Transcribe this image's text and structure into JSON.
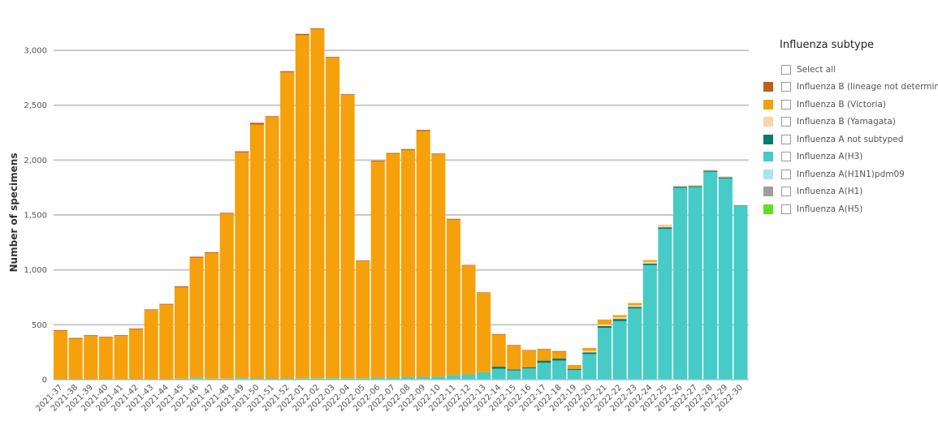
{
  "chart_data": {
    "type": "bar",
    "stacked": true,
    "ylabel": "Number of specimens",
    "ylim": [
      0,
      3200
    ],
    "yticks": [
      0,
      500,
      1000,
      1500,
      2000,
      2500,
      3000
    ],
    "ytick_labels": [
      "0",
      "500",
      "1,000",
      "1,500",
      "2,000",
      "2,500",
      "3,000"
    ],
    "grid": true,
    "legend_position": "right",
    "legend_title": "Influenza subtype",
    "select_all_label": "Select all",
    "categories": [
      "2021-37",
      "2021-38",
      "2021-39",
      "2021-40",
      "2021-41",
      "2021-42",
      "2021-43",
      "2021-44",
      "2021-45",
      "2021-46",
      "2021-47",
      "2021-48",
      "2021-49",
      "2021-50",
      "2021-51",
      "2021-52",
      "2022-01",
      "2022-02",
      "2022-03",
      "2022-04",
      "2022-05",
      "2022-06",
      "2022-07",
      "2022-08",
      "2022-09",
      "2022-10",
      "2022-11",
      "2022-12",
      "2022-13",
      "2022-14",
      "2022-15",
      "2022-16",
      "2022-17",
      "2022-18",
      "2022-19",
      "2022-20",
      "2022-21",
      "2022-22",
      "2022-23",
      "2022-24",
      "2022-25",
      "2022-26",
      "2022-27",
      "2022-28",
      "2022-29",
      "2022-30"
    ],
    "series": [
      {
        "name": "Influenza A(H5)",
        "color": "#66dd22",
        "values": [
          0,
          0,
          0,
          0,
          0,
          0,
          0,
          0,
          0,
          0,
          0,
          0,
          0,
          0,
          0,
          0,
          0,
          0,
          0,
          0,
          0,
          0,
          0,
          0,
          0,
          0,
          0,
          0,
          0,
          0,
          0,
          0,
          0,
          0,
          0,
          0,
          0,
          0,
          0,
          0,
          0,
          0,
          0,
          0,
          0,
          0
        ]
      },
      {
        "name": "Influenza A(H1)",
        "color": "#9e9e9e",
        "values": [
          0,
          0,
          0,
          0,
          0,
          0,
          0,
          0,
          0,
          0,
          0,
          0,
          0,
          0,
          0,
          0,
          0,
          0,
          0,
          0,
          0,
          0,
          0,
          0,
          0,
          0,
          0,
          0,
          0,
          0,
          0,
          0,
          0,
          0,
          0,
          0,
          0,
          0,
          0,
          0,
          0,
          0,
          0,
          0,
          0,
          0
        ]
      },
      {
        "name": "Influenza A(H1N1)pdm09",
        "color": "#a8e4ec",
        "values": [
          2,
          2,
          2,
          2,
          2,
          2,
          2,
          2,
          3,
          5,
          3,
          3,
          5,
          3,
          3,
          3,
          3,
          3,
          3,
          3,
          3,
          3,
          3,
          5,
          5,
          3,
          3,
          3,
          3,
          3,
          3,
          3,
          3,
          3,
          3,
          3,
          3,
          3,
          3,
          3,
          3,
          3,
          3,
          3,
          3,
          3
        ]
      },
      {
        "name": "Influenza A(H3)",
        "color": "#46cbc6",
        "values": [
          3,
          3,
          3,
          3,
          3,
          3,
          3,
          3,
          5,
          12,
          5,
          5,
          12,
          8,
          8,
          8,
          10,
          10,
          10,
          10,
          10,
          15,
          15,
          20,
          20,
          25,
          40,
          45,
          65,
          95,
          80,
          100,
          150,
          170,
          85,
          230,
          470,
          530,
          645,
          1040,
          1370,
          1745,
          1750,
          1890,
          1830,
          1580
        ]
      },
      {
        "name": "Influenza A not subtyped",
        "color": "#0b7a6e",
        "values": [
          0,
          0,
          0,
          0,
          0,
          0,
          0,
          0,
          0,
          0,
          0,
          0,
          0,
          0,
          0,
          0,
          0,
          0,
          0,
          0,
          0,
          0,
          0,
          0,
          0,
          0,
          0,
          0,
          0,
          20,
          10,
          10,
          20,
          20,
          10,
          15,
          15,
          20,
          15,
          15,
          15,
          10,
          10,
          10,
          10,
          5
        ]
      },
      {
        "name": "Influenza B (Yamagata)",
        "color": "#f6d6a6",
        "values": [
          0,
          0,
          0,
          0,
          0,
          0,
          0,
          0,
          0,
          0,
          0,
          0,
          0,
          0,
          0,
          0,
          0,
          0,
          0,
          0,
          0,
          0,
          0,
          0,
          0,
          0,
          0,
          0,
          0,
          0,
          0,
          0,
          0,
          0,
          0,
          15,
          15,
          15,
          15,
          15,
          15,
          10,
          10,
          10,
          10,
          5
        ]
      },
      {
        "name": "Influenza B (Victoria)",
        "color": "#f6a10b",
        "values": [
          438,
          368,
          393,
          378,
          393,
          453,
          628,
          678,
          833,
          1093,
          1145,
          1505,
          2053,
          2313,
          2382,
          2790,
          3125,
          3180,
          2920,
          2580,
          1065,
          1970,
          2040,
          2065,
          2240,
          2025,
          1415,
          992,
          722,
          292,
          217,
          152,
          102,
          62,
          35,
          26,
          45,
          20,
          20,
          15,
          5,
          0,
          0,
          0,
          0,
          0
        ]
      },
      {
        "name": "Influenza B (lineage not determined)",
        "color": "#c15d1c",
        "values": [
          7,
          7,
          7,
          7,
          7,
          7,
          7,
          7,
          9,
          10,
          7,
          7,
          10,
          16,
          7,
          9,
          12,
          7,
          7,
          7,
          7,
          7,
          7,
          10,
          10,
          7,
          7,
          5,
          5,
          5,
          5,
          5,
          5,
          5,
          0,
          0,
          0,
          0,
          0,
          0,
          0,
          0,
          0,
          0,
          0,
          0
        ]
      }
    ],
    "legend_order": [
      "Influenza B (lineage not determined)",
      "Influenza B (Victoria)",
      "Influenza B (Yamagata)",
      "Influenza A not subtyped",
      "Influenza A(H3)",
      "Influenza A(H1N1)pdm09",
      "Influenza A(H1)",
      "Influenza A(H5)"
    ]
  }
}
